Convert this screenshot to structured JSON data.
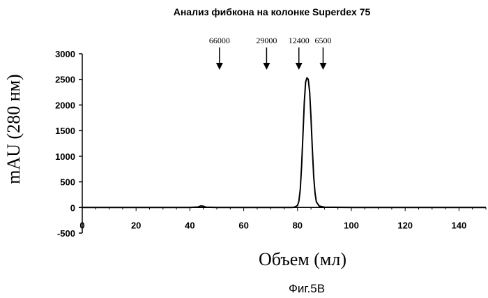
{
  "chart_data": {
    "type": "line",
    "title": "Анализ фибкона на колонке Superdex 75",
    "xlabel": "Объем (мл)",
    "ylabel": "mAU (280 нм)",
    "xlim": [
      0,
      150
    ],
    "ylim": [
      -500,
      3000
    ],
    "x_ticks": [
      "0",
      "20",
      "40",
      "60",
      "80",
      "100",
      "120",
      "140"
    ],
    "y_ticks": [
      "3000",
      "2500",
      "2000",
      "1500",
      "1000",
      "500",
      "0",
      "-500"
    ],
    "x_tick_values": [
      0,
      20,
      40,
      60,
      80,
      100,
      120,
      140
    ],
    "y_tick_values": [
      3000,
      2500,
      2000,
      1500,
      1000,
      500,
      0,
      -500
    ],
    "grid": false,
    "legend": "none",
    "markers": [
      {
        "label": "66000",
        "x": 51
      },
      {
        "label": "29000",
        "x": 68.5
      },
      {
        "label": "12400",
        "x": 80.5
      },
      {
        "label": "6500",
        "x": 89.5
      }
    ],
    "series": [
      {
        "x": [
          0,
          10,
          20,
          30,
          40,
          43,
          44,
          45,
          46,
          50,
          60,
          70,
          78,
          79,
          80,
          80.5,
          81,
          81.5,
          82,
          82.5,
          83,
          83.5,
          84,
          84.5,
          85,
          85.5,
          86,
          86.5,
          87,
          88,
          90,
          100,
          110,
          120,
          130,
          140,
          150
        ],
        "y": [
          0,
          0,
          0,
          0,
          0,
          10,
          30,
          25,
          5,
          0,
          0,
          0,
          0,
          10,
          40,
          120,
          350,
          800,
          1400,
          2050,
          2450,
          2530,
          2500,
          2250,
          1750,
          1150,
          600,
          280,
          110,
          30,
          5,
          0,
          0,
          0,
          0,
          0,
          0
        ]
      }
    ]
  },
  "caption": "Фиг.5В"
}
